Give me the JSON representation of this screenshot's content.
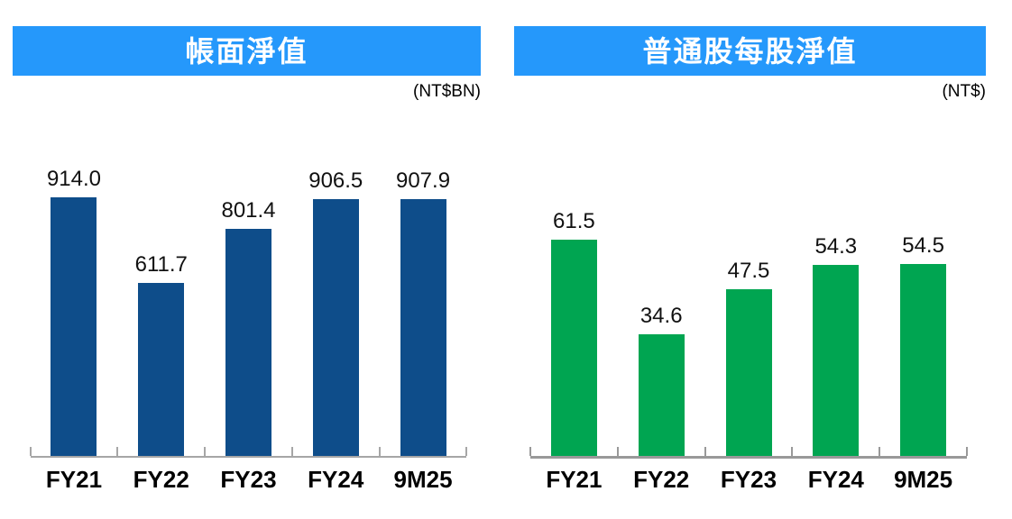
{
  "page": {
    "background_color": "#ffffff"
  },
  "chart_data": [
    {
      "type": "bar",
      "title": "帳面淨值",
      "unit_label": "(NT$BN)",
      "categories": [
        "FY21",
        "FY22",
        "FY23",
        "FY24",
        "9M25"
      ],
      "values": [
        914.0,
        611.7,
        801.4,
        906.5,
        907.9
      ],
      "value_labels": [
        "914.0",
        "611.7",
        "801.4",
        "906.5",
        "907.9"
      ],
      "grid": false,
      "legend": "none",
      "header_color": "#2598FB",
      "bar_color": "#0E4D8A",
      "axis_color": "#A6A6A6"
    },
    {
      "type": "bar",
      "title": "普通股每股淨值",
      "unit_label": "(NT$)",
      "categories": [
        "FY21",
        "FY22",
        "FY23",
        "FY24",
        "9M25"
      ],
      "values": [
        61.5,
        34.6,
        47.5,
        54.3,
        54.5
      ],
      "value_labels": [
        "61.5",
        "34.6",
        "47.5",
        "54.3",
        "54.5"
      ],
      "grid": false,
      "legend": "none",
      "header_color": "#2598FB",
      "bar_color": "#00A551",
      "axis_color": "#999999"
    }
  ]
}
